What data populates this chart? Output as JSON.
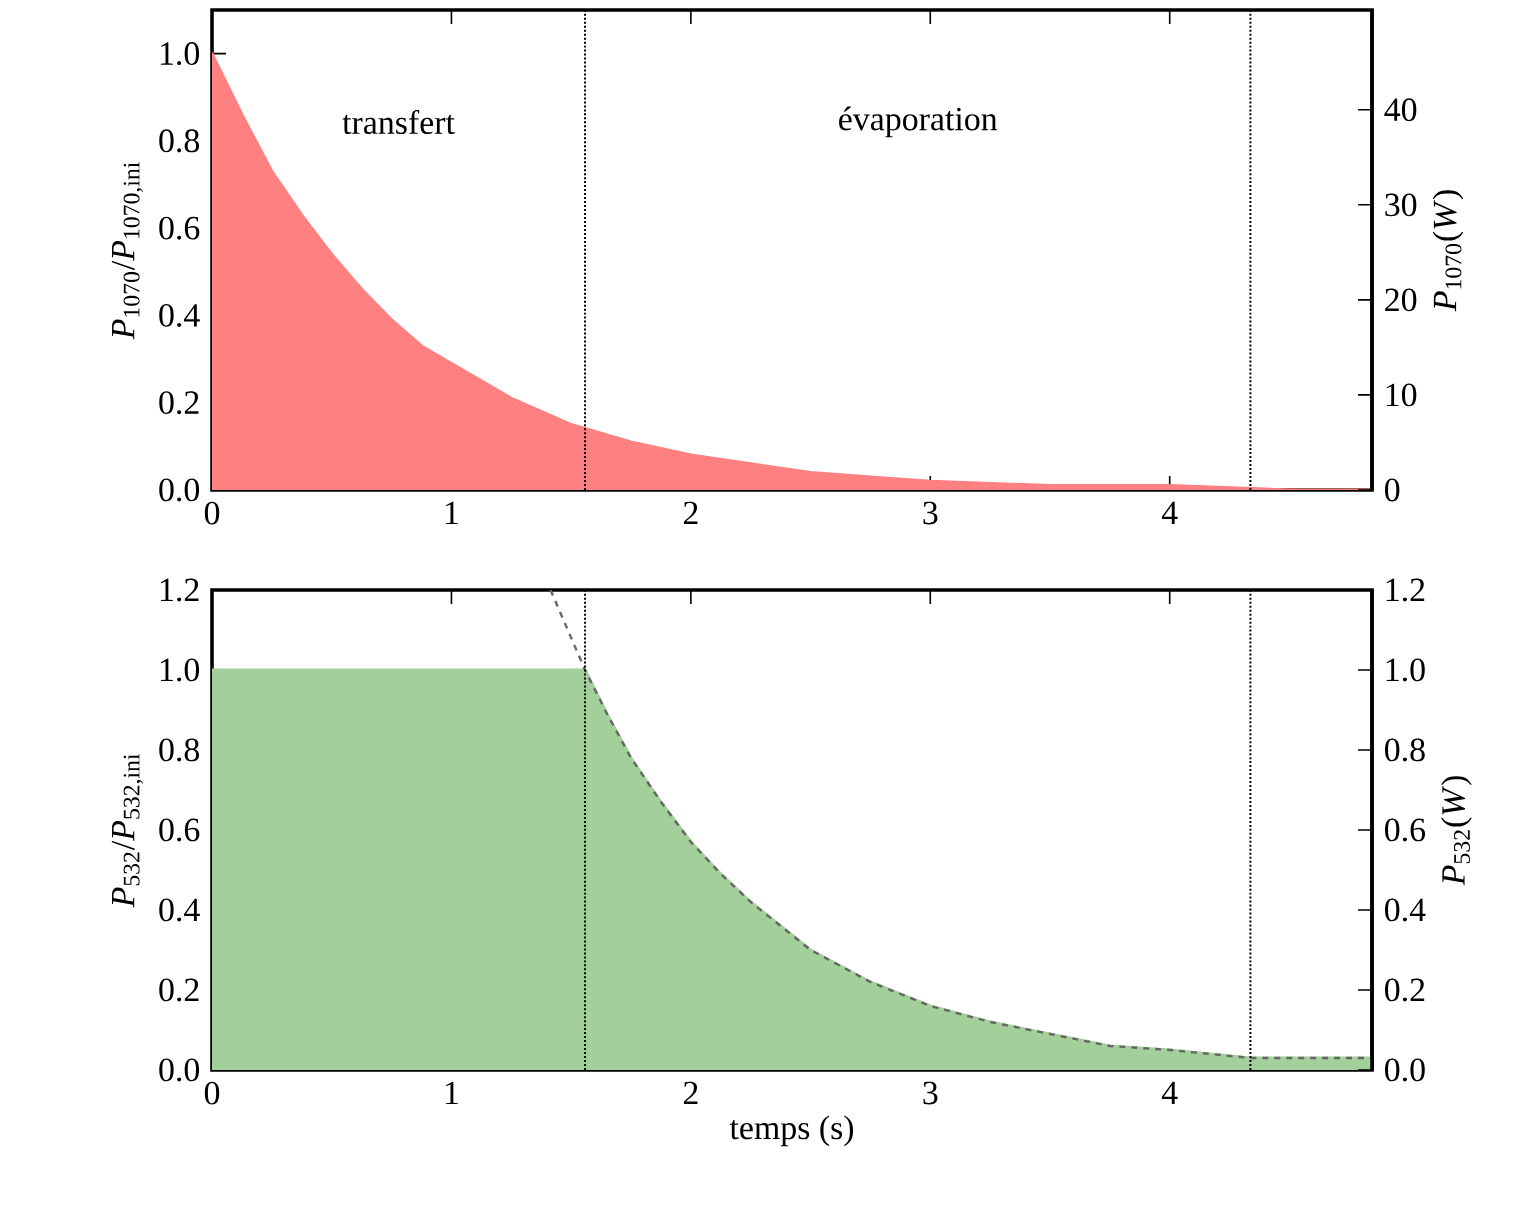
{
  "chart_data": [
    {
      "type": "area",
      "ylabel": "*P*$_{1070}$/*P*$_{1070,ini}$",
      "y2label": "*P*$_{1070}$(*W*)",
      "x": [
        0,
        0.125,
        0.25,
        0.375,
        0.5,
        0.625,
        0.75,
        0.875,
        1.0,
        1.125,
        1.25,
        1.375,
        1.5,
        1.75,
        2.0,
        2.25,
        2.5,
        2.75,
        3.0,
        3.5,
        4.0,
        4.5,
        4.845
      ],
      "series": [
        {
          "color": "#ff8080",
          "values": [
            1.0,
            0.86,
            0.73,
            0.63,
            0.54,
            0.46,
            0.39,
            0.33,
            0.29,
            0.25,
            0.21,
            0.18,
            0.15,
            0.11,
            0.08,
            0.06,
            0.04,
            0.03,
            0.02,
            0.01,
            0.01,
            0.0,
            0.0
          ]
        }
      ],
      "xlim": [
        0,
        4.845
      ],
      "ylim": [
        0,
        1.1
      ],
      "y2lim": [
        0,
        50.5
      ],
      "xticks": [
        0,
        1,
        2,
        3,
        4
      ],
      "yticks": [
        {
          "value": 0,
          "label": "0.0"
        },
        {
          "value": 0.2,
          "label": "0.2"
        },
        {
          "value": 0.4,
          "label": "0.4"
        },
        {
          "value": 0.6,
          "label": "0.6"
        },
        {
          "value": 0.8,
          "label": "0.8"
        },
        {
          "value": 1.0,
          "label": "1.0"
        }
      ],
      "y2ticks": [
        0,
        10,
        20,
        30,
        40
      ],
      "ref_lines": [
        {
          "axis": "x",
          "value": 1.558,
          "color": "#000000",
          "line_style": "dotted"
        },
        {
          "axis": "x",
          "value": 4.337,
          "color": "#000000",
          "line_style": "dotted"
        }
      ],
      "annotations": [
        "transfert",
        "évaporation"
      ]
    },
    {
      "type": "area",
      "xlabel": "temps (s)",
      "ylabel": "*P*$_{532}$/*P*$_{532,ini}$",
      "y2label": "*P*$_{532}$(*W*)",
      "x": [
        0,
        1.558,
        1.65,
        1.75,
        1.875,
        2.0,
        2.125,
        2.25,
        2.375,
        2.5,
        2.75,
        3.0,
        3.25,
        3.5,
        3.75,
        4.0,
        4.337,
        4.845
      ],
      "series": [
        {
          "color": "#a3cf9b",
          "values": [
            1.0,
            1.0,
            0.89,
            0.78,
            0.67,
            0.57,
            0.49,
            0.42,
            0.36,
            0.3,
            0.22,
            0.16,
            0.12,
            0.09,
            0.06,
            0.05,
            0.03,
            0.03
          ]
        },
        {
          "type": "line",
          "color": "#666666",
          "line_style": "dashed",
          "x": [
            1.414,
            1.558,
            1.65,
            1.75,
            1.875,
            2.0,
            2.125,
            2.25,
            2.375,
            2.5,
            2.75,
            3.0,
            3.25,
            3.5,
            3.75,
            4.0,
            4.337,
            4.845
          ],
          "values": [
            1.2,
            1.0,
            0.89,
            0.78,
            0.67,
            0.57,
            0.49,
            0.42,
            0.36,
            0.3,
            0.22,
            0.16,
            0.12,
            0.09,
            0.06,
            0.05,
            0.03,
            0.03
          ]
        }
      ],
      "xlim": [
        0,
        4.845
      ],
      "ylim": [
        0,
        1.2
      ],
      "y2lim": [
        0,
        1.2
      ],
      "xticks": [
        0,
        1,
        2,
        3,
        4
      ],
      "yticks": [
        {
          "value": 0,
          "label": "0.0"
        },
        {
          "value": 0.2,
          "label": "0.2"
        },
        {
          "value": 0.4,
          "label": "0.4"
        },
        {
          "value": 0.6,
          "label": "0.6"
        },
        {
          "value": 0.8,
          "label": "0.8"
        },
        {
          "value": 1.0,
          "label": "1.0"
        },
        {
          "value": 1.2,
          "label": "1.2"
        }
      ],
      "y2ticks": [
        {
          "value": 0,
          "label": "0.0"
        },
        {
          "value": 0.2,
          "label": "0.2"
        },
        {
          "value": 0.4,
          "label": "0.4"
        },
        {
          "value": 0.6,
          "label": "0.6"
        },
        {
          "value": 0.8,
          "label": "0.8"
        },
        {
          "value": 1.0,
          "label": "1.0"
        },
        {
          "value": 1.2,
          "label": "1.2"
        }
      ],
      "ref_lines": [
        {
          "axis": "x",
          "value": 1.558,
          "color": "#000000",
          "line_style": "dotted"
        },
        {
          "axis": "x",
          "value": 4.337,
          "color": "#000000",
          "line_style": "dotted"
        }
      ]
    }
  ]
}
